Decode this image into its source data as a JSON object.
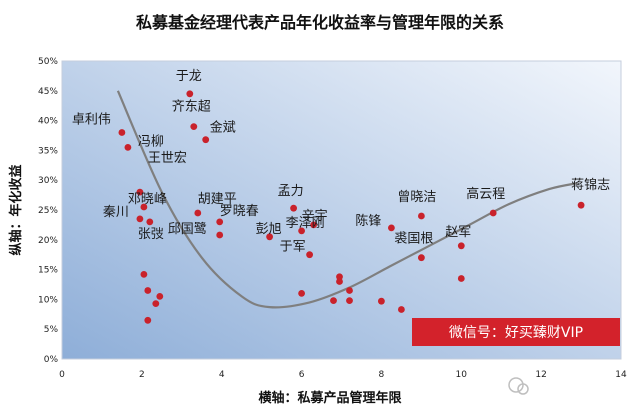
{
  "chart_data": {
    "type": "scatter",
    "title": "私募基金经理代表产品年化收益率与管理年限的关系",
    "xlabel": "横轴：私募产品管理年限",
    "ylabel": "纵轴：年化收益",
    "xlim": [
      0,
      14
    ],
    "ylim": [
      0,
      0.5
    ],
    "x_ticks": [
      "0",
      "2",
      "4",
      "6",
      "8",
      "10",
      "12",
      "14"
    ],
    "y_ticks": [
      "0%",
      "5%",
      "10%",
      "15%",
      "20%",
      "25%",
      "30%",
      "35%",
      "40%",
      "45%",
      "50%"
    ],
    "points": [
      {
        "x": 1.5,
        "y": 0.38,
        "label": "卓利伟"
      },
      {
        "x": 1.65,
        "y": 0.355,
        "label": "冯柳"
      },
      {
        "x": 3.2,
        "y": 0.445,
        "label": "于龙"
      },
      {
        "x": 3.3,
        "y": 0.39,
        "label": "齐东超"
      },
      {
        "x": 3.6,
        "y": 0.368,
        "label": "金斌"
      },
      {
        "x": 1.95,
        "y": 0.28,
        "label": "王世宏"
      },
      {
        "x": 2.05,
        "y": 0.255,
        "label": "邓晓峰"
      },
      {
        "x": 1.95,
        "y": 0.235,
        "label": "秦川"
      },
      {
        "x": 2.2,
        "y": 0.23,
        "label": "张弢"
      },
      {
        "x": 3.4,
        "y": 0.245,
        "label": "胡建平"
      },
      {
        "x": 3.95,
        "y": 0.23,
        "label": "罗晓春"
      },
      {
        "x": 3.95,
        "y": 0.208,
        "label": "邱国鹭"
      },
      {
        "x": 5.2,
        "y": 0.205,
        "label": "彭旭"
      },
      {
        "x": 5.8,
        "y": 0.253,
        "label": "孟力"
      },
      {
        "x": 6.3,
        "y": 0.225,
        "label": "辛宇"
      },
      {
        "x": 6.0,
        "y": 0.215,
        "label": "李泽刚"
      },
      {
        "x": 6.2,
        "y": 0.175,
        "label": "于军"
      },
      {
        "x": 8.25,
        "y": 0.22,
        "label": "陈锋"
      },
      {
        "x": 9.0,
        "y": 0.24,
        "label": "曾晓洁"
      },
      {
        "x": 9.0,
        "y": 0.17,
        "label": "裘国根"
      },
      {
        "x": 10.0,
        "y": 0.19,
        "label": "赵军"
      },
      {
        "x": 10.8,
        "y": 0.245,
        "label": "高云程"
      },
      {
        "x": 13.0,
        "y": 0.258,
        "label": "蒋锦志"
      },
      {
        "x": 2.05,
        "y": 0.142,
        "label": ""
      },
      {
        "x": 2.15,
        "y": 0.115,
        "label": ""
      },
      {
        "x": 2.45,
        "y": 0.105,
        "label": ""
      },
      {
        "x": 2.35,
        "y": 0.093,
        "label": ""
      },
      {
        "x": 2.15,
        "y": 0.065,
        "label": ""
      },
      {
        "x": 6.0,
        "y": 0.11,
        "label": ""
      },
      {
        "x": 6.8,
        "y": 0.098,
        "label": ""
      },
      {
        "x": 6.95,
        "y": 0.138,
        "label": ""
      },
      {
        "x": 6.95,
        "y": 0.13,
        "label": ""
      },
      {
        "x": 7.2,
        "y": 0.115,
        "label": ""
      },
      {
        "x": 7.2,
        "y": 0.098,
        "label": ""
      },
      {
        "x": 8.0,
        "y": 0.097,
        "label": ""
      },
      {
        "x": 8.5,
        "y": 0.083,
        "label": ""
      },
      {
        "x": 10.0,
        "y": 0.135,
        "label": ""
      }
    ],
    "trendline": {
      "x": [
        1.4,
        2.5,
        3.5,
        4.5,
        5.2,
        6.2,
        7.2,
        8.2,
        9.2,
        10.2,
        11.2,
        12.2,
        12.9
      ],
      "y": [
        0.45,
        0.28,
        0.17,
        0.105,
        0.087,
        0.095,
        0.12,
        0.155,
        0.19,
        0.225,
        0.26,
        0.285,
        0.295
      ]
    },
    "grid": false,
    "colors": {
      "points": "#c9222b",
      "trendline": "#7f7f7f",
      "plot_bg_start": "#8eaed8",
      "plot_bg_end": "#eef3fa"
    }
  },
  "watermark": {
    "text": "微信号：好买臻财VIP",
    "color": "#d3222b"
  },
  "logo": {
    "text": "好买臻财VIP",
    "icon": "wechat-subscription-icon"
  }
}
